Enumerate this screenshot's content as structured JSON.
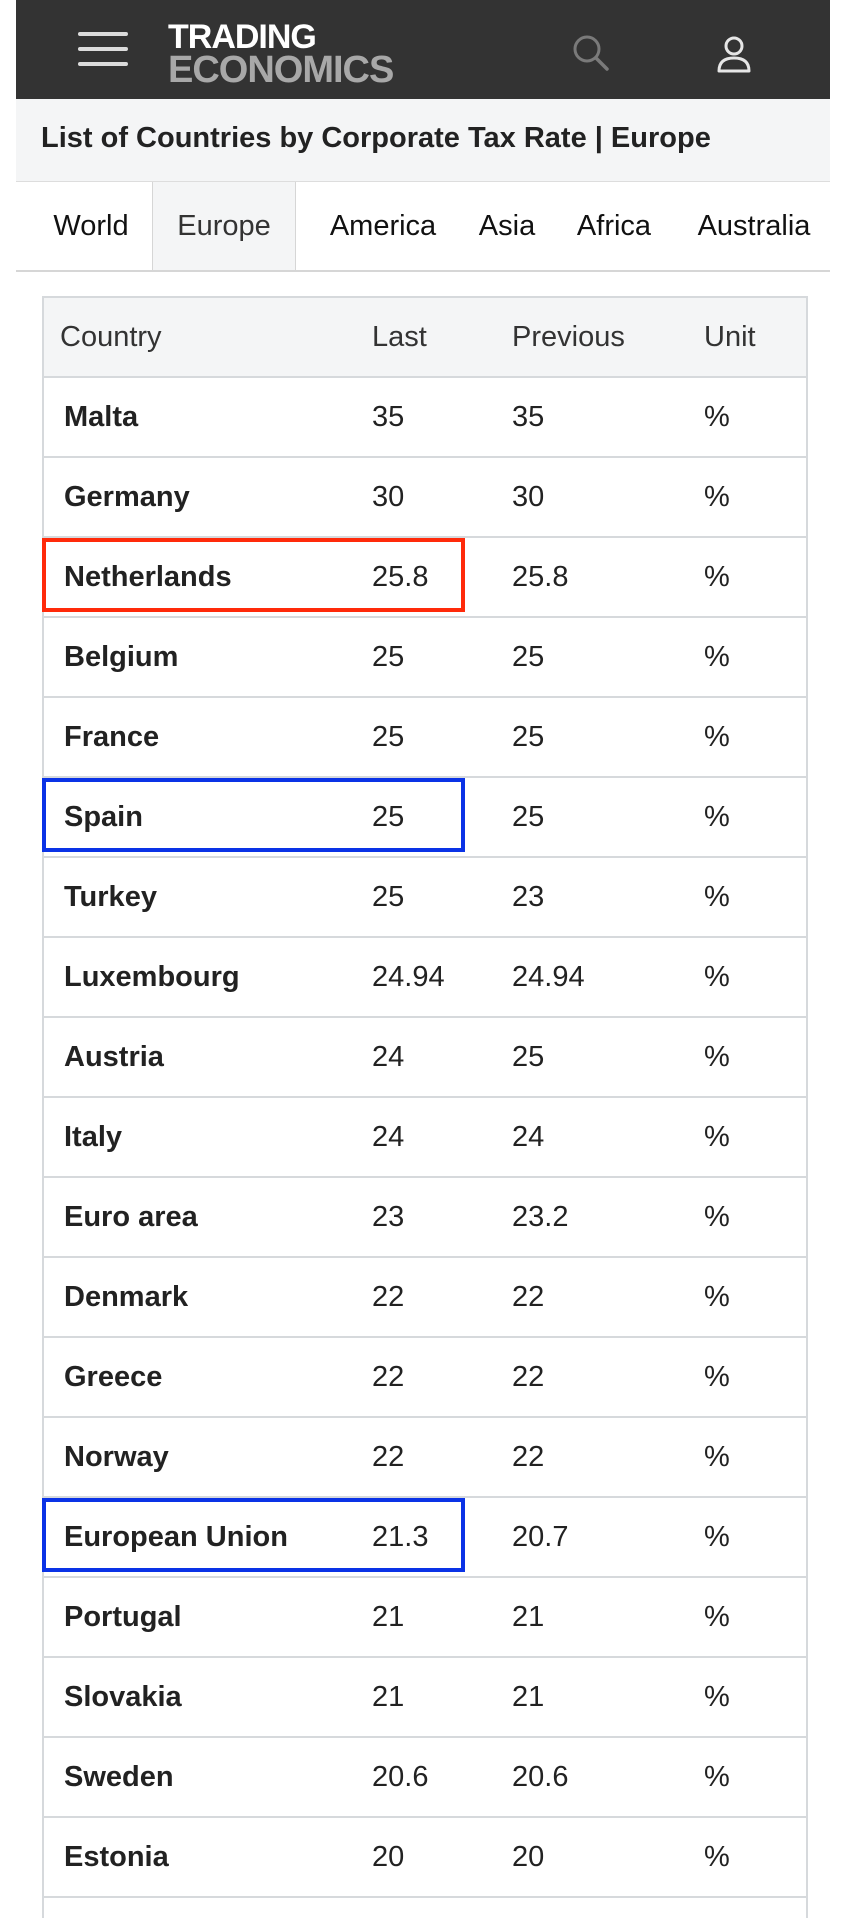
{
  "header": {
    "logo_line1": "TRADING",
    "logo_line2": "ECONOMICS",
    "menu_icon": "hamburger-menu-icon",
    "search_icon": "search-icon",
    "user_icon": "user-icon"
  },
  "page": {
    "title": "List of Countries by Corporate Tax Rate | Europe"
  },
  "tabs": [
    {
      "label": "World"
    },
    {
      "label": "Europe",
      "active": true
    },
    {
      "label": "America"
    },
    {
      "label": "Asia"
    },
    {
      "label": "Africa"
    },
    {
      "label": "Australia"
    }
  ],
  "table": {
    "columns": {
      "country": "Country",
      "last": "Last",
      "previous": "Previous",
      "unit": "Unit"
    },
    "rows": [
      {
        "country": "Malta",
        "last": "35",
        "previous": "35",
        "unit": "%"
      },
      {
        "country": "Germany",
        "last": "30",
        "previous": "30",
        "unit": "%"
      },
      {
        "country": "Netherlands",
        "last": "25.8",
        "previous": "25.8",
        "unit": "%"
      },
      {
        "country": "Belgium",
        "last": "25",
        "previous": "25",
        "unit": "%"
      },
      {
        "country": "France",
        "last": "25",
        "previous": "25",
        "unit": "%"
      },
      {
        "country": "Spain",
        "last": "25",
        "previous": "25",
        "unit": "%"
      },
      {
        "country": "Turkey",
        "last": "25",
        "previous": "23",
        "unit": "%"
      },
      {
        "country": "Luxembourg",
        "last": "24.94",
        "previous": "24.94",
        "unit": "%"
      },
      {
        "country": "Austria",
        "last": "24",
        "previous": "25",
        "unit": "%"
      },
      {
        "country": "Italy",
        "last": "24",
        "previous": "24",
        "unit": "%"
      },
      {
        "country": "Euro area",
        "last": "23",
        "previous": "23.2",
        "unit": "%"
      },
      {
        "country": "Denmark",
        "last": "22",
        "previous": "22",
        "unit": "%"
      },
      {
        "country": "Greece",
        "last": "22",
        "previous": "22",
        "unit": "%"
      },
      {
        "country": "Norway",
        "last": "22",
        "previous": "22",
        "unit": "%"
      },
      {
        "country": "European Union",
        "last": "21.3",
        "previous": "20.7",
        "unit": "%"
      },
      {
        "country": "Portugal",
        "last": "21",
        "previous": "21",
        "unit": "%"
      },
      {
        "country": "Slovakia",
        "last": "21",
        "previous": "21",
        "unit": "%"
      },
      {
        "country": "Sweden",
        "last": "20.6",
        "previous": "20.6",
        "unit": "%"
      },
      {
        "country": "Estonia",
        "last": "20",
        "previous": "20",
        "unit": "%"
      }
    ]
  },
  "highlights": [
    {
      "row": 2,
      "color": "#ff2a0a"
    },
    {
      "row": 5,
      "color": "#0a32e6"
    },
    {
      "row": 14,
      "color": "#0a32e6"
    }
  ],
  "colors": {
    "topbar": "#333333",
    "title_background": "#f4f5f6",
    "logo_primary": "#ffffff",
    "logo_secondary": "#a8a8a8"
  }
}
